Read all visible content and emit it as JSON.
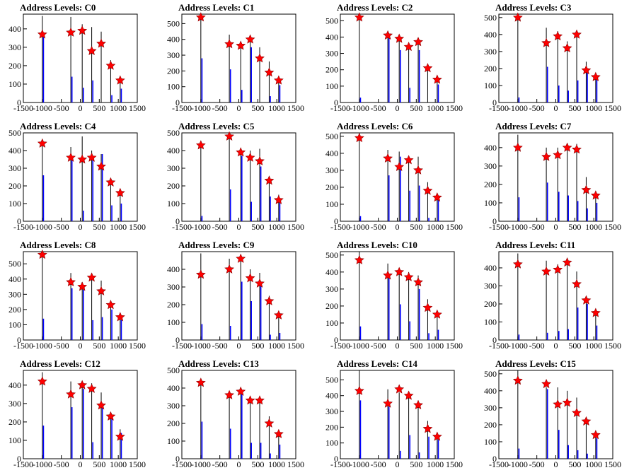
{
  "chart_data": [
    {
      "type": "bar",
      "title": "Address Levels: C0",
      "xlim": [
        -1500,
        1500
      ],
      "ylim": [
        0,
        480
      ],
      "xticks": [
        -1500,
        -1000,
        -500,
        0,
        500,
        1000,
        1500
      ],
      "yticks": [
        0,
        100,
        200,
        300,
        400
      ],
      "x": [
        -1000,
        -250,
        50,
        300,
        550,
        800,
        1050
      ],
      "values": [
        470,
        465,
        425,
        410,
        385,
        230,
        140
      ],
      "secondary": [
        360,
        140,
        80,
        120,
        0,
        40,
        75
      ],
      "markers": [
        370,
        380,
        390,
        280,
        320,
        200,
        120
      ]
    },
    {
      "type": "bar",
      "title": "Address Levels: C1",
      "xlim": [
        -1500,
        1500
      ],
      "ylim": [
        0,
        560
      ],
      "xticks": [
        -1500,
        -1000,
        -500,
        0,
        500,
        1000,
        1500
      ],
      "yticks": [
        0,
        100,
        200,
        300,
        400,
        500
      ],
      "x": [
        -1000,
        -250,
        50,
        300,
        550,
        800,
        1050
      ],
      "values": [
        560,
        430,
        380,
        410,
        350,
        260,
        160
      ],
      "secondary": [
        280,
        210,
        80,
        350,
        0,
        40,
        110
      ],
      "markers": [
        540,
        370,
        360,
        400,
        280,
        190,
        140
      ]
    },
    {
      "type": "bar",
      "title": "Address Levels: C2",
      "xlim": [
        -1500,
        1500
      ],
      "ylim": [
        0,
        540
      ],
      "xticks": [
        -1500,
        -1000,
        -500,
        0,
        500,
        1000,
        1500
      ],
      "yticks": [
        0,
        100,
        200,
        300,
        400,
        500
      ],
      "x": [
        -1000,
        -250,
        50,
        300,
        550,
        800,
        1050
      ],
      "values": [
        540,
        420,
        390,
        360,
        360,
        210,
        150
      ],
      "secondary": [
        30,
        400,
        320,
        90,
        320,
        0,
        110
      ],
      "markers": [
        520,
        410,
        390,
        340,
        370,
        210,
        140
      ]
    },
    {
      "type": "bar",
      "title": "Address Levels: C3",
      "xlim": [
        -1500,
        1500
      ],
      "ylim": [
        0,
        520
      ],
      "xticks": [
        -1500,
        -1000,
        -500,
        0,
        500,
        1000,
        1500
      ],
      "yticks": [
        0,
        100,
        200,
        300,
        400,
        500
      ],
      "x": [
        -1000,
        -250,
        50,
        300,
        550,
        800,
        1050
      ],
      "values": [
        520,
        440,
        420,
        360,
        420,
        240,
        160
      ],
      "secondary": [
        30,
        210,
        100,
        70,
        130,
        180,
        150
      ],
      "markers": [
        500,
        350,
        390,
        320,
        400,
        190,
        150
      ]
    },
    {
      "type": "bar",
      "title": "Address Levels: C4",
      "xlim": [
        -1500,
        1500
      ],
      "ylim": [
        0,
        500
      ],
      "xticks": [
        -1500,
        -1000,
        -500,
        0,
        500,
        1000,
        1500
      ],
      "yticks": [
        0,
        100,
        200,
        300,
        400,
        500
      ],
      "x": [
        -1000,
        -250,
        50,
        300,
        550,
        800,
        1050
      ],
      "values": [
        450,
        420,
        480,
        400,
        380,
        240,
        170
      ],
      "secondary": [
        260,
        350,
        60,
        350,
        380,
        90,
        100
      ],
      "markers": [
        440,
        360,
        350,
        360,
        310,
        220,
        160
      ]
    },
    {
      "type": "bar",
      "title": "Address Levels: C5",
      "xlim": [
        -1500,
        1500
      ],
      "ylim": [
        0,
        500
      ],
      "xticks": [
        -1500,
        -1000,
        -500,
        0,
        500,
        1000,
        1500
      ],
      "yticks": [
        0,
        100,
        200,
        300,
        400,
        500
      ],
      "x": [
        -1000,
        -250,
        50,
        300,
        550,
        800,
        1050
      ],
      "values": [
        440,
        500,
        410,
        400,
        410,
        240,
        150
      ],
      "secondary": [
        30,
        180,
        370,
        110,
        310,
        140,
        110
      ],
      "markers": [
        430,
        480,
        390,
        360,
        340,
        230,
        120
      ]
    },
    {
      "type": "bar",
      "title": "Address Levels: C6",
      "xlim": [
        -1500,
        1500
      ],
      "ylim": [
        0,
        520
      ],
      "xticks": [
        -1500,
        -1000,
        -500,
        0,
        500,
        1000,
        1500
      ],
      "yticks": [
        0,
        100,
        200,
        300,
        400,
        500
      ],
      "x": [
        -1000,
        -250,
        50,
        300,
        550,
        800,
        1050
      ],
      "values": [
        520,
        420,
        410,
        380,
        380,
        230,
        150
      ],
      "secondary": [
        30,
        270,
        380,
        180,
        210,
        20,
        130
      ],
      "markers": [
        490,
        370,
        320,
        360,
        300,
        180,
        140
      ]
    },
    {
      "type": "bar",
      "title": "Address Levels: C7",
      "xlim": [
        -1500,
        1500
      ],
      "ylim": [
        0,
        480
      ],
      "xticks": [
        -1500,
        -1000,
        -500,
        0,
        500,
        1000,
        1500
      ],
      "yticks": [
        0,
        100,
        200,
        300,
        400
      ],
      "x": [
        -1000,
        -250,
        50,
        300,
        550,
        800,
        1050
      ],
      "values": [
        470,
        400,
        400,
        420,
        420,
        240,
        160
      ],
      "secondary": [
        130,
        210,
        160,
        140,
        110,
        70,
        100
      ],
      "markers": [
        400,
        350,
        360,
        400,
        390,
        170,
        140
      ]
    },
    {
      "type": "bar",
      "title": "Address Levels: C8",
      "xlim": [
        -1500,
        1500
      ],
      "ylim": [
        0,
        580
      ],
      "xticks": [
        -1500,
        -1000,
        -500,
        0,
        500,
        1000,
        1500
      ],
      "yticks": [
        0,
        100,
        200,
        300,
        400,
        500
      ],
      "x": [
        -1000,
        -250,
        50,
        300,
        550,
        800,
        1050
      ],
      "values": [
        580,
        440,
        380,
        420,
        390,
        250,
        160
      ],
      "secondary": [
        140,
        340,
        330,
        130,
        150,
        200,
        130
      ],
      "markers": [
        560,
        380,
        350,
        410,
        320,
        230,
        150
      ]
    },
    {
      "type": "bar",
      "title": "Address Levels: C9",
      "xlim": [
        -1500,
        1500
      ],
      "ylim": [
        0,
        500
      ],
      "xticks": [
        -1500,
        -1000,
        -500,
        0,
        500,
        1000,
        1500
      ],
      "yticks": [
        0,
        100,
        200,
        300,
        400
      ],
      "x": [
        -1000,
        -250,
        50,
        300,
        550,
        800,
        1050
      ],
      "values": [
        490,
        460,
        480,
        400,
        380,
        250,
        150
      ],
      "secondary": [
        90,
        80,
        330,
        220,
        330,
        30,
        40
      ],
      "markers": [
        370,
        400,
        460,
        350,
        320,
        220,
        140
      ]
    },
    {
      "type": "bar",
      "title": "Address Levels: C10",
      "xlim": [
        -1500,
        1500
      ],
      "ylim": [
        0,
        520
      ],
      "xticks": [
        -1500,
        -1000,
        -500,
        0,
        500,
        1000,
        1500
      ],
      "yticks": [
        0,
        100,
        200,
        300,
        400,
        500
      ],
      "x": [
        -1000,
        -250,
        50,
        300,
        550,
        800,
        1050
      ],
      "values": [
        520,
        450,
        420,
        400,
        380,
        240,
        170
      ],
      "secondary": [
        80,
        380,
        210,
        110,
        300,
        40,
        60
      ],
      "markers": [
        470,
        380,
        400,
        370,
        340,
        190,
        150
      ]
    },
    {
      "type": "bar",
      "title": "Address Levels: C11",
      "xlim": [
        -1500,
        1500
      ],
      "ylim": [
        0,
        490
      ],
      "xticks": [
        -1500,
        -1000,
        -500,
        0,
        500,
        1000,
        1500
      ],
      "yticks": [
        0,
        100,
        200,
        300,
        400
      ],
      "x": [
        -1000,
        -250,
        50,
        300,
        550,
        800,
        1050
      ],
      "values": [
        480,
        440,
        420,
        450,
        380,
        240,
        160
      ],
      "secondary": [
        30,
        40,
        50,
        60,
        180,
        200,
        80
      ],
      "markers": [
        420,
        380,
        390,
        430,
        310,
        220,
        150
      ]
    },
    {
      "type": "bar",
      "title": "Address Levels: C12",
      "xlim": [
        -1500,
        1500
      ],
      "ylim": [
        0,
        480
      ],
      "xticks": [
        -1500,
        -1000,
        -500,
        0,
        500,
        1000,
        1500
      ],
      "yticks": [
        0,
        100,
        200,
        300,
        400
      ],
      "x": [
        -1000,
        -250,
        50,
        300,
        550,
        800,
        1050
      ],
      "values": [
        470,
        420,
        400,
        410,
        360,
        250,
        160
      ],
      "secondary": [
        180,
        280,
        380,
        90,
        280,
        240,
        140
      ],
      "markers": [
        420,
        350,
        400,
        380,
        290,
        230,
        120
      ]
    },
    {
      "type": "bar",
      "title": "Address Levels: C13",
      "xlim": [
        -1500,
        1500
      ],
      "ylim": [
        0,
        500
      ],
      "xticks": [
        -1500,
        -1000,
        -500,
        0,
        500,
        1000,
        1500
      ],
      "yticks": [
        0,
        100,
        200,
        300,
        400,
        500
      ],
      "x": [
        -1000,
        -250,
        50,
        300,
        550,
        800,
        1050
      ],
      "values": [
        450,
        380,
        400,
        350,
        350,
        240,
        160
      ],
      "secondary": [
        210,
        170,
        380,
        90,
        90,
        30,
        80
      ],
      "markers": [
        430,
        360,
        380,
        330,
        330,
        200,
        140
      ]
    },
    {
      "type": "bar",
      "title": "Address Levels: C14",
      "xlim": [
        -1500,
        1500
      ],
      "ylim": [
        0,
        560
      ],
      "xticks": [
        -1500,
        -1000,
        -500,
        0,
        500,
        1000,
        1500
      ],
      "yticks": [
        0,
        100,
        200,
        300,
        400,
        500
      ],
      "x": [
        -1000,
        -250,
        50,
        300,
        550,
        800,
        1050
      ],
      "values": [
        560,
        440,
        420,
        420,
        370,
        240,
        160
      ],
      "secondary": [
        370,
        330,
        50,
        150,
        40,
        140,
        120
      ],
      "markers": [
        430,
        350,
        440,
        400,
        340,
        190,
        140
      ]
    },
    {
      "type": "bar",
      "title": "Address Levels: C15",
      "xlim": [
        -1500,
        1500
      ],
      "ylim": [
        0,
        520
      ],
      "xticks": [
        -1500,
        -1000,
        -500,
        0,
        500,
        1000,
        1500
      ],
      "yticks": [
        0,
        100,
        200,
        300,
        400,
        500
      ],
      "x": [
        -1000,
        -250,
        50,
        300,
        550,
        800,
        1050
      ],
      "values": [
        520,
        420,
        420,
        400,
        360,
        240,
        160
      ],
      "secondary": [
        60,
        410,
        170,
        80,
        50,
        30,
        120
      ],
      "markers": [
        460,
        440,
        320,
        330,
        270,
        220,
        140
      ]
    }
  ]
}
